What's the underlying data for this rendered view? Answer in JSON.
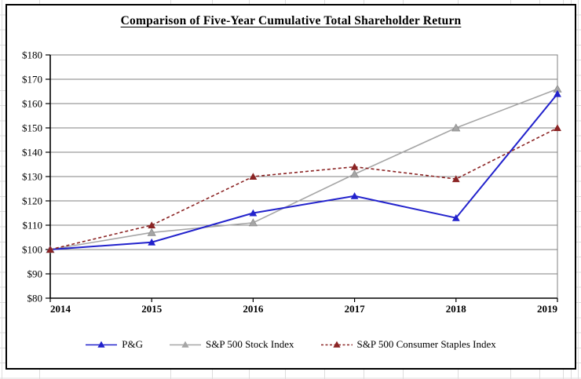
{
  "title": "Comparison of Five-Year Cumulative Total Shareholder Return",
  "chart_data": {
    "type": "line",
    "title": "Comparison of Five-Year Cumulative Total Shareholder Return",
    "x": [
      "2014",
      "2015",
      "2016",
      "2017",
      "2018",
      "2019"
    ],
    "xlabel": "",
    "ylabel": "",
    "y_axis": {
      "min": 80,
      "max": 180,
      "step": 10,
      "tick_labels": [
        "$80",
        "$90",
        "$100",
        "$110",
        "$120",
        "$130",
        "$140",
        "$150",
        "$160",
        "$170",
        "$180"
      ]
    },
    "grid": true,
    "legend_position": "bottom",
    "series": [
      {
        "name": "P&G",
        "color": "#2222CC",
        "line_style": "solid",
        "marker": "triangle",
        "values": [
          100,
          103,
          115,
          122,
          113,
          164
        ]
      },
      {
        "name": "S&P 500 Stock Index",
        "color": "#A6A6A6",
        "line_style": "solid",
        "marker": "triangle",
        "values": [
          100,
          107,
          111,
          131,
          150,
          166
        ]
      },
      {
        "name": "S&P 500 Consumer Staples Index",
        "color": "#8B2424",
        "line_style": "dashed",
        "marker": "triangle",
        "values": [
          100,
          110,
          130,
          134,
          129,
          150
        ]
      }
    ],
    "colors": {
      "gridline": "#808080",
      "axis": "#000000",
      "plot_border": "#808080"
    }
  }
}
